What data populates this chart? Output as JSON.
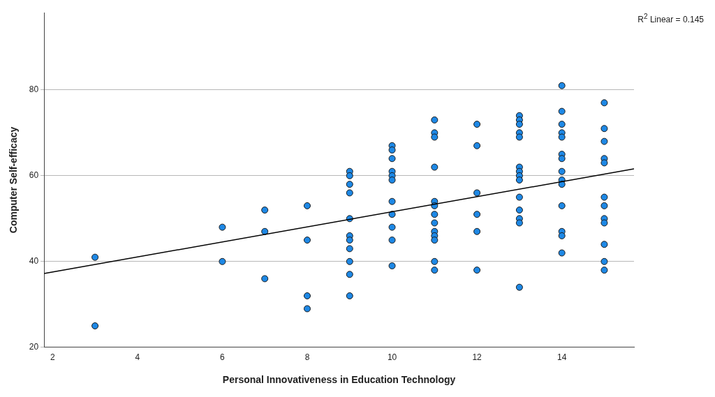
{
  "chart_data": {
    "type": "scatter",
    "xlabel": "Personal Innovativeness in Education Technology",
    "ylabel": "Computer Self-efficacy",
    "annotations": [
      "R$^{2}$ Linear = 0.145"
    ],
    "xlim": [
      1.8,
      15.7
    ],
    "ylim": [
      20,
      98
    ],
    "xticks": [
      2,
      4,
      6,
      8,
      10,
      12,
      14
    ],
    "yticks": [
      20,
      40,
      60,
      80
    ],
    "grid": "y",
    "legend": false,
    "series": [
      {
        "marker": "circle",
        "color": "#1e88e5",
        "x": [
          3,
          3,
          6,
          6,
          7,
          7,
          7,
          8,
          8,
          8,
          8,
          9,
          9,
          9,
          9,
          9,
          9,
          9,
          9,
          9,
          9,
          9,
          10,
          10,
          10,
          10,
          10,
          10,
          10,
          10,
          10,
          10,
          10,
          11,
          11,
          11,
          11,
          11,
          11,
          11,
          11,
          11,
          11,
          11,
          11,
          11,
          12,
          12,
          12,
          12,
          12,
          12,
          13,
          13,
          13,
          13,
          13,
          13,
          13,
          13,
          13,
          13,
          13,
          13,
          13,
          13,
          14,
          14,
          14,
          14,
          14,
          14,
          14,
          14,
          14,
          14,
          14,
          14,
          14,
          14,
          15,
          15,
          15,
          15,
          15,
          15,
          15,
          15,
          15,
          15,
          15,
          15
        ],
        "values": [
          41,
          25,
          48,
          40,
          52,
          47,
          36,
          53,
          45,
          32,
          29,
          61,
          60,
          58,
          56,
          50,
          46,
          45,
          43,
          40,
          37,
          32,
          67,
          66,
          64,
          61,
          60,
          59,
          54,
          51,
          48,
          45,
          39,
          73,
          70,
          69,
          62,
          54,
          53,
          51,
          49,
          47,
          46,
          45,
          40,
          38,
          72,
          67,
          56,
          51,
          47,
          38,
          74,
          73,
          72,
          70,
          69,
          62,
          61,
          60,
          59,
          55,
          52,
          50,
          49,
          34,
          81,
          75,
          72,
          70,
          69,
          65,
          64,
          61,
          59,
          58,
          53,
          47,
          46,
          42,
          77,
          71,
          68,
          64,
          63,
          55,
          53,
          50,
          49,
          44,
          40,
          38
        ]
      },
      {
        "type": "line",
        "color": "#000000",
        "x": [
          1.8,
          15.7
        ],
        "values": [
          37.2,
          61.6
        ]
      }
    ]
  }
}
